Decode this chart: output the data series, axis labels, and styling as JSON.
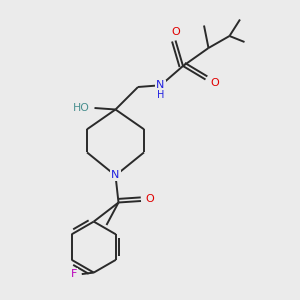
{
  "bg_color": "#ebebeb",
  "bond_color": "#2a2a2a",
  "atom_colors": {
    "O": "#e00000",
    "N": "#2020e0",
    "F": "#bb00bb",
    "HO": "#4a9090",
    "H": "#2020e0"
  },
  "bond_width": 1.4,
  "dbo": 0.012,
  "figsize": [
    3.0,
    3.0
  ],
  "dpi": 100
}
